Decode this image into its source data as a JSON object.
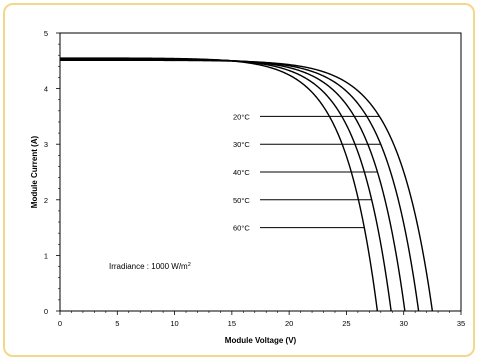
{
  "chart_data": {
    "type": "line",
    "title": "",
    "xlabel": "Module Voltage (V)",
    "ylabel": "Module Current (A)",
    "xlim": [
      0,
      35
    ],
    "ylim": [
      0,
      5
    ],
    "x_ticks": [
      0,
      5,
      10,
      15,
      20,
      25,
      30,
      35
    ],
    "y_ticks": [
      0,
      1,
      2,
      3,
      4,
      5
    ],
    "minor_ticks": true,
    "grid": false,
    "annotation": {
      "text": "Irradiance : 1000 W/m",
      "superscript": "2"
    },
    "series": [
      {
        "name": "20°C",
        "isc": 4.51,
        "voc": 32.5,
        "k": 0.095,
        "label_y": 3.5
      },
      {
        "name": "30°C",
        "isc": 4.52,
        "voc": 31.3,
        "k": 0.097,
        "label_y": 3.0
      },
      {
        "name": "40°C",
        "isc": 4.53,
        "voc": 30.1,
        "k": 0.099,
        "label_y": 2.5
      },
      {
        "name": "50°C",
        "isc": 4.54,
        "voc": 28.9,
        "k": 0.101,
        "label_y": 2.0
      },
      {
        "name": "60°C",
        "isc": 4.55,
        "voc": 27.7,
        "k": 0.103,
        "label_y": 1.5
      }
    ],
    "line_color": "#000000",
    "frame_color": "#f3d78a"
  }
}
